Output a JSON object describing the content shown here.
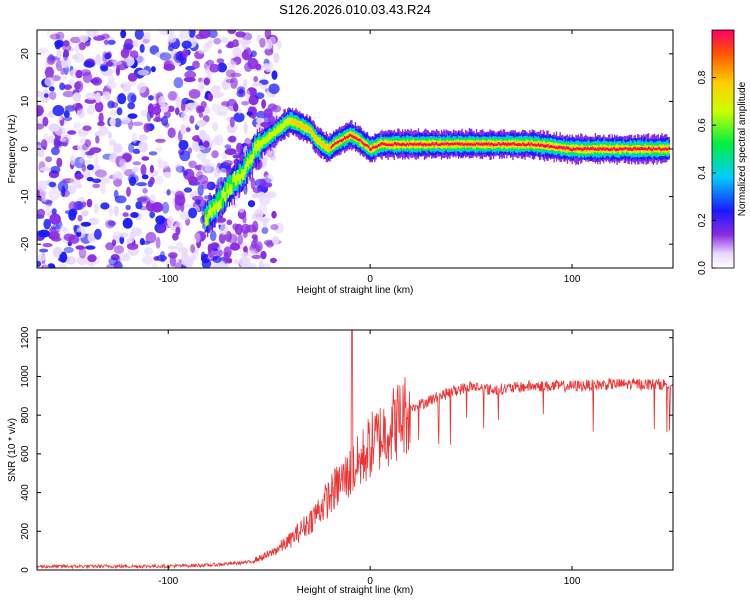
{
  "title": "S126.2026.010.03.43.R24",
  "chart_data": [
    {
      "type": "heatmap",
      "name": "spectrogram",
      "xlabel": "Height of straight line (km)",
      "ylabel": "Frequency (Hz)",
      "xlim": [
        -165,
        150
      ],
      "ylim": [
        -25,
        25
      ],
      "xticks": [
        -100,
        0,
        100
      ],
      "yticks": [
        -20,
        -10,
        0,
        10,
        20
      ],
      "colorbar": {
        "label": "Normalized spectral amplitude",
        "range": [
          0,
          1
        ],
        "ticks": [
          0.0,
          0.2,
          0.4,
          0.6,
          0.8
        ]
      },
      "ridge": {
        "x": [
          -82,
          -75,
          -68,
          -62,
          -57,
          -52,
          -46,
          -40,
          -35,
          -30,
          -27,
          -24,
          -21,
          -18,
          -14,
          -10,
          -6,
          -3,
          0,
          5,
          10,
          20,
          40,
          60,
          80,
          100,
          120,
          148
        ],
        "y": [
          -15,
          -11,
          -7,
          -4,
          0,
          2,
          4,
          6,
          5,
          4,
          2,
          1,
          0,
          1,
          2,
          3,
          2,
          1,
          0,
          1,
          1,
          1,
          1,
          1,
          1,
          0,
          0,
          0
        ]
      },
      "noise_region_x": [
        -165,
        -60
      ]
    },
    {
      "type": "line",
      "name": "snr",
      "xlabel": "Height of straight line (km)",
      "ylabel": "SNR (10 * v/v)",
      "xlim": [
        -165,
        150
      ],
      "ylim": [
        0,
        1240
      ],
      "xticks": [
        -100,
        0,
        100
      ],
      "yticks": [
        0,
        200,
        400,
        600,
        800,
        1000,
        1200
      ],
      "series": [
        {
          "name": "SNR",
          "color": "#ee3333",
          "envelope": {
            "x": [
              -165,
              -100,
              -80,
              -60,
              -50,
              -40,
              -30,
              -20,
              -15,
              -10,
              -5,
              0,
              10,
              20,
              30,
              40,
              50,
              60,
              80,
              100,
              120,
              150
            ],
            "y": [
              18,
              20,
              25,
              40,
              80,
              150,
              250,
              380,
              450,
              500,
              560,
              640,
              740,
              830,
              880,
              920,
              950,
              930,
              950,
              950,
              960,
              960
            ]
          },
          "spike": {
            "x": -9,
            "y": 1240
          }
        }
      ]
    }
  ]
}
